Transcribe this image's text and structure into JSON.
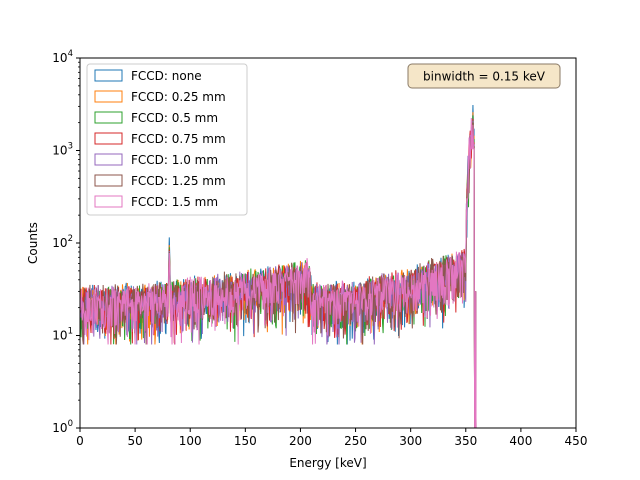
{
  "chart_data": {
    "type": "histogram",
    "title": "",
    "xlabel": "Energy [keV]",
    "ylabel": "Counts",
    "xlim": [
      0,
      450
    ],
    "ylim": [
      1,
      10000
    ],
    "yscale": "log",
    "grid": false,
    "x_ticks": [
      "0",
      "50",
      "100",
      "150",
      "200",
      "250",
      "300",
      "350",
      "400",
      "450"
    ],
    "y_ticks": [
      {
        "base": "10",
        "exp": "0"
      },
      {
        "base": "10",
        "exp": "1"
      },
      {
        "base": "10",
        "exp": "2"
      },
      {
        "base": "10",
        "exp": "3"
      },
      {
        "base": "10",
        "exp": "4"
      }
    ],
    "annotation": "binwidth = 0.15 keV",
    "annotation_bg": "#f5e6c8",
    "legend_position": "upper left",
    "series": [
      {
        "name": "FCCD: none",
        "color": "#1f77b4",
        "peak_81": 115,
        "peak_356": 3100
      },
      {
        "name": "FCCD: 0.25 mm",
        "color": "#ff7f0e",
        "peak_81": 95,
        "peak_356": 2600
      },
      {
        "name": "FCCD: 0.5 mm",
        "color": "#2ca02c",
        "peak_81": 90,
        "peak_356": 2400
      },
      {
        "name": "FCCD: 0.75 mm",
        "color": "#d62728",
        "peak_81": 85,
        "peak_356": 2200
      },
      {
        "name": "FCCD: 1.0 mm",
        "color": "#9467bd",
        "peak_81": 82,
        "peak_356": 2100
      },
      {
        "name": "FCCD: 1.25 mm",
        "color": "#8c564b",
        "peak_81": 80,
        "peak_356": 2000
      },
      {
        "name": "FCCD: 1.5 mm",
        "color": "#e377c2",
        "peak_81": 78,
        "peak_356": 1900
      }
    ],
    "continuum_shape": [
      {
        "x": 0,
        "y": 20
      },
      {
        "x": 80,
        "y": 23
      },
      {
        "x": 150,
        "y": 30
      },
      {
        "x": 208,
        "y": 40
      },
      {
        "x": 210,
        "y": 22
      },
      {
        "x": 250,
        "y": 23
      },
      {
        "x": 300,
        "y": 33
      },
      {
        "x": 350,
        "y": 52
      },
      {
        "x": 357,
        "y": 1900
      },
      {
        "x": 359,
        "y": 1
      }
    ]
  }
}
